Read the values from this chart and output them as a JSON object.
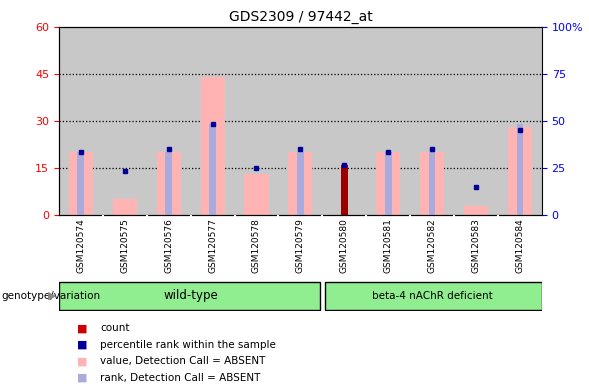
{
  "title": "GDS2309 / 97442_at",
  "samples": [
    "GSM120574",
    "GSM120575",
    "GSM120576",
    "GSM120577",
    "GSM120578",
    "GSM120579",
    "GSM120580",
    "GSM120581",
    "GSM120582",
    "GSM120583",
    "GSM120584"
  ],
  "pink_bar_values": [
    20,
    5,
    20,
    44,
    13,
    20,
    0,
    20,
    20,
    3,
    28
  ],
  "blue_bar_values": [
    20,
    0,
    20,
    29,
    0,
    20,
    0,
    20,
    20,
    0,
    29
  ],
  "rank_blue_dots_y": [
    20,
    14,
    21,
    29,
    15,
    21,
    16,
    20,
    21,
    9,
    27
  ],
  "count_bar_values": [
    0,
    0,
    0,
    0,
    0,
    0,
    16,
    0,
    0,
    0,
    0
  ],
  "pink_bar_color": "#FFB3B3",
  "blue_bar_color": "#AAAADD",
  "count_bar_color": "#990000",
  "rank_dot_color": "#000099",
  "wild_type_color": "#90EE90",
  "deficient_color": "#90EE90",
  "wild_type_label": "wild-type",
  "deficient_label": "beta-4 nAChR deficient",
  "wild_type_count": 6,
  "total_count": 11,
  "ylim_left": [
    0,
    60
  ],
  "ylim_right": [
    0,
    100
  ],
  "yticks_left": [
    0,
    15,
    30,
    45,
    60
  ],
  "ytick_labels_left": [
    "0",
    "15",
    "30",
    "45",
    "60"
  ],
  "yticks_right": [
    0,
    25,
    50,
    75,
    100
  ],
  "ytick_labels_right": [
    "0",
    "25",
    "50",
    "75",
    "100%"
  ],
  "legend_items": [
    {
      "label": "count",
      "color": "#CC0000"
    },
    {
      "label": "percentile rank within the sample",
      "color": "#000099"
    },
    {
      "label": "value, Detection Call = ABSENT",
      "color": "#FFB3B3"
    },
    {
      "label": "rank, Detection Call = ABSENT",
      "color": "#AAAADD"
    }
  ],
  "genotype_label": "genotype/variation",
  "col_bg_color": "#C8C8C8"
}
